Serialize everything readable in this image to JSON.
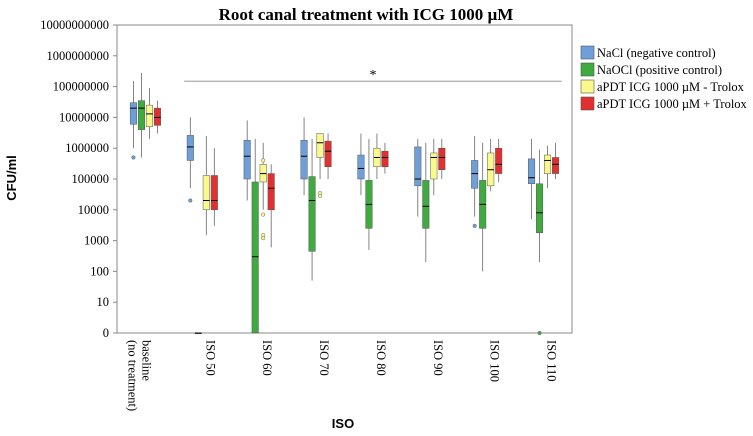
{
  "chart_data": {
    "type": "boxplot",
    "title": "Root canal treatment with ICG 1000 µM",
    "xlabel": "ISO",
    "ylabel": "CFU/ml",
    "yscale": "log",
    "y_ticks": [
      {
        "value": 1,
        "label": "0"
      },
      {
        "value": 10,
        "label": "10"
      },
      {
        "value": 100,
        "label": "100"
      },
      {
        "value": 1000,
        "label": "1000"
      },
      {
        "value": 10000,
        "label": "10000"
      },
      {
        "value": 100000,
        "label": "100000"
      },
      {
        "value": 1000000,
        "label": "1000000"
      },
      {
        "value": 10000000,
        "label": "10000000"
      },
      {
        "value": 100000000,
        "label": "100000000"
      },
      {
        "value": 1000000000,
        "label": "1000000000"
      },
      {
        "value": 10000000000,
        "label": "10000000000"
      }
    ],
    "categories": [
      "baseline\n(no treatment)",
      "ISO 50",
      "ISO 60",
      "ISO 70",
      "ISO 80",
      "ISO 90",
      "ISO 100",
      "ISO 110"
    ],
    "legend": {
      "position": "right"
    },
    "annotation": {
      "text": "*",
      "from_category": 1,
      "to_category": 7,
      "y_value": 150000000
    },
    "series": [
      {
        "name": "NaCl (negative control)",
        "color": "#6f9fd8",
        "boxes": [
          {
            "whisker_low": 1000000,
            "q1": 6000000,
            "median": 20000000,
            "q3": 30000000,
            "whisker_high": 150000000,
            "outliers": [
              500000
            ]
          },
          {
            "whisker_low": 50000,
            "q1": 400000,
            "median": 1100000,
            "q3": 2600000,
            "whisker_high": 10000000,
            "outliers": [
              20000
            ]
          },
          {
            "whisker_low": 20000,
            "q1": 100000,
            "median": 550000,
            "q3": 1800000,
            "whisker_high": 8000000,
            "outliers": []
          },
          {
            "whisker_low": 30000,
            "q1": 100000,
            "median": 550000,
            "q3": 1800000,
            "whisker_high": 10000000,
            "outliers": []
          },
          {
            "whisker_low": 30000,
            "q1": 100000,
            "median": 220000,
            "q3": 600000,
            "whisker_high": 3000000,
            "outliers": []
          },
          {
            "whisker_low": 6000,
            "q1": 60000,
            "median": 100000,
            "q3": 1100000,
            "whisker_high": 2000000,
            "outliers": []
          },
          {
            "whisker_low": 6000,
            "q1": 50000,
            "median": 150000,
            "q3": 400000,
            "whisker_high": 2500000,
            "outliers": [
              3000
            ]
          },
          {
            "whisker_low": 5000,
            "q1": 70000,
            "median": 110000,
            "q3": 450000,
            "whisker_high": 2000000,
            "outliers": []
          }
        ]
      },
      {
        "name": "NaOCl (positive control)",
        "color": "#3faa3f",
        "boxes": [
          {
            "whisker_low": 500000,
            "q1": 4000000,
            "median": 20000000,
            "q3": 35000000,
            "whisker_high": 280000000,
            "outliers": []
          },
          {
            "whisker_low": 1,
            "q1": 1,
            "median": 1,
            "q3": 1,
            "whisker_high": 1,
            "outliers": []
          },
          {
            "whisker_low": 1,
            "q1": 1,
            "median": 300,
            "q3": 80000,
            "whisker_high": 2000000,
            "outliers": []
          },
          {
            "whisker_low": 50,
            "q1": 450,
            "median": 20000,
            "q3": 120000,
            "whisker_high": 2000000,
            "outliers": []
          },
          {
            "whisker_low": 500,
            "q1": 2500,
            "median": 15000,
            "q3": 90000,
            "whisker_high": 2000000,
            "outliers": []
          },
          {
            "whisker_low": 200,
            "q1": 2500,
            "median": 13000,
            "q3": 90000,
            "whisker_high": 1500000,
            "outliers": []
          },
          {
            "whisker_low": 100,
            "q1": 2500,
            "median": 15000,
            "q3": 90000,
            "whisker_high": 1500000,
            "outliers": []
          },
          {
            "whisker_low": 200,
            "q1": 1800,
            "median": 8000,
            "q3": 70000,
            "whisker_high": 900000,
            "outliers": [
              1
            ]
          }
        ]
      },
      {
        "name": "aPDT ICG 1000 µM - Trolox",
        "color": "#fafa8c",
        "boxes": [
          {
            "whisker_low": 2000000,
            "q1": 5000000,
            "median": 13000000,
            "q3": 25000000,
            "whisker_high": 90000000,
            "outliers": []
          },
          {
            "whisker_low": 1500,
            "q1": 10000,
            "median": 20000,
            "q3": 130000,
            "whisker_high": 2500000,
            "outliers": []
          },
          {
            "whisker_low": 10000,
            "q1": 80000,
            "median": 150000,
            "q3": 300000,
            "whisker_high": 1500000,
            "outliers": [
              400000,
              7000,
              1500,
              1200
            ]
          },
          {
            "whisker_low": 100000,
            "q1": 500000,
            "median": 1500000,
            "q3": 3000000,
            "whisker_high": 3000000,
            "outliers": [
              35000,
              28000
            ]
          },
          {
            "whisker_low": 100000,
            "q1": 250000,
            "median": 500000,
            "q3": 1000000,
            "whisker_high": 3000000,
            "outliers": []
          },
          {
            "whisker_low": 30000,
            "q1": 100000,
            "median": 500000,
            "q3": 700000,
            "whisker_high": 2000000,
            "outliers": []
          },
          {
            "whisker_low": 40000,
            "q1": 60000,
            "median": 200000,
            "q3": 700000,
            "whisker_high": 2000000,
            "outliers": []
          },
          {
            "whisker_low": 50000,
            "q1": 150000,
            "median": 400000,
            "q3": 600000,
            "whisker_high": 1200000,
            "outliers": []
          }
        ]
      },
      {
        "name": "aPDT ICG 1000 µM + Trolox",
        "color": "#e03030",
        "boxes": [
          {
            "whisker_low": 3000000,
            "q1": 5500000,
            "median": 10000000,
            "q3": 20000000,
            "whisker_high": 35000000,
            "outliers": []
          },
          {
            "whisker_low": 3000,
            "q1": 10000,
            "median": 20000,
            "q3": 130000,
            "whisker_high": 1000000,
            "outliers": []
          },
          {
            "whisker_low": 600,
            "q1": 10000,
            "median": 50000,
            "q3": 150000,
            "whisker_high": 300000,
            "outliers": []
          },
          {
            "whisker_low": 100000,
            "q1": 250000,
            "median": 800000,
            "q3": 1700000,
            "whisker_high": 3000000,
            "outliers": []
          },
          {
            "whisker_low": 150000,
            "q1": 250000,
            "median": 500000,
            "q3": 800000,
            "whisker_high": 1500000,
            "outliers": []
          },
          {
            "whisker_low": 100000,
            "q1": 200000,
            "median": 500000,
            "q3": 1000000,
            "whisker_high": 2000000,
            "outliers": []
          },
          {
            "whisker_low": 80000,
            "q1": 150000,
            "median": 300000,
            "q3": 1000000,
            "whisker_high": 2000000,
            "outliers": []
          },
          {
            "whisker_low": 100000,
            "q1": 150000,
            "median": 300000,
            "q3": 500000,
            "whisker_high": 1500000,
            "outliers": []
          }
        ]
      }
    ]
  }
}
